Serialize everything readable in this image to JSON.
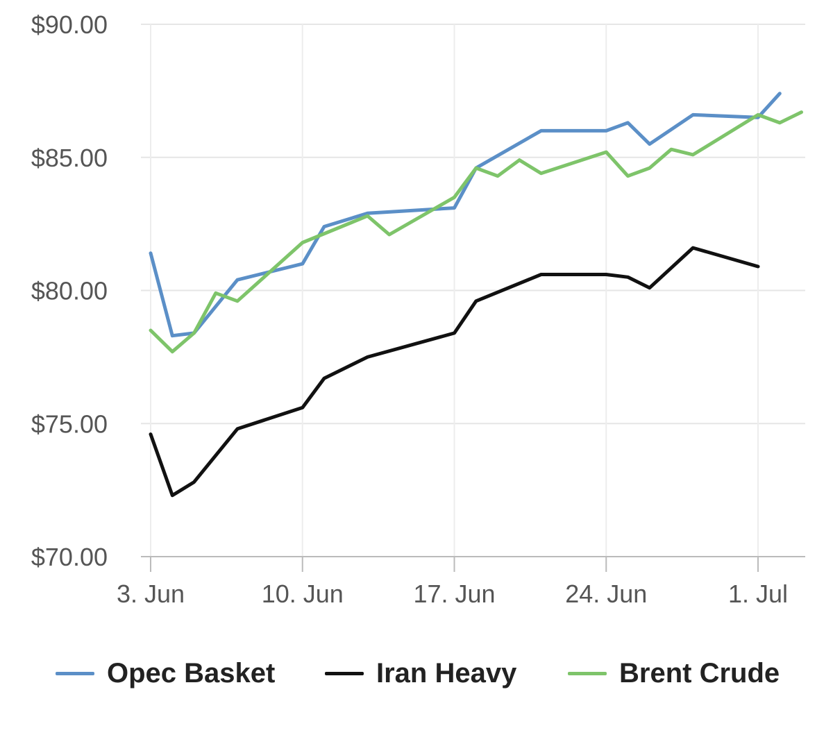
{
  "chart_data": {
    "type": "line",
    "title": "",
    "xlabel": "",
    "ylabel": "",
    "ylim": [
      70,
      90
    ],
    "y_ticks": [
      "$70.00",
      "$75.00",
      "$80.00",
      "$85.00",
      "$90.00"
    ],
    "x_ticks": [
      "3. Jun",
      "10. Jun",
      "17. Jun",
      "24. Jun",
      "1. Jul"
    ],
    "grid": true,
    "legend_position": "bottom",
    "x": [
      "2019-06-03",
      "2019-06-04",
      "2019-06-05",
      "2019-06-06",
      "2019-06-07",
      "2019-06-08",
      "2019-06-09",
      "2019-06-10",
      "2019-06-11",
      "2019-06-12",
      "2019-06-13",
      "2019-06-14",
      "2019-06-15",
      "2019-06-16",
      "2019-06-17",
      "2019-06-18",
      "2019-06-19",
      "2019-06-20",
      "2019-06-21",
      "2019-06-22",
      "2019-06-23",
      "2019-06-24",
      "2019-06-25",
      "2019-06-26",
      "2019-06-27",
      "2019-06-28",
      "2019-06-29",
      "2019-06-30",
      "2019-07-01",
      "2019-07-02",
      "2019-07-03"
    ],
    "series": [
      {
        "name": "Opec Basket",
        "color": "#5b8fc7",
        "values": [
          81.4,
          78.3,
          78.4,
          null,
          80.4,
          null,
          null,
          81.0,
          82.4,
          null,
          82.9,
          null,
          null,
          null,
          83.1,
          84.6,
          null,
          null,
          86.0,
          null,
          null,
          86.0,
          86.3,
          85.5,
          null,
          86.6,
          null,
          null,
          86.5,
          87.4,
          null
        ]
      },
      {
        "name": "Iran Heavy",
        "color": "#111111",
        "values": [
          74.6,
          72.3,
          72.8,
          null,
          74.8,
          null,
          null,
          75.6,
          76.7,
          null,
          77.5,
          null,
          null,
          null,
          78.4,
          79.6,
          null,
          null,
          80.6,
          null,
          null,
          80.6,
          80.5,
          80.1,
          null,
          81.6,
          null,
          null,
          80.9,
          null,
          null
        ]
      },
      {
        "name": "Brent Crude",
        "color": "#7ec46a",
        "values": [
          78.5,
          77.7,
          78.4,
          79.9,
          79.6,
          null,
          null,
          81.8,
          null,
          null,
          82.8,
          82.1,
          null,
          null,
          83.5,
          84.6,
          84.3,
          84.9,
          84.4,
          null,
          null,
          85.2,
          84.3,
          84.6,
          85.3,
          85.1,
          null,
          null,
          86.6,
          86.3,
          86.7
        ]
      }
    ]
  }
}
